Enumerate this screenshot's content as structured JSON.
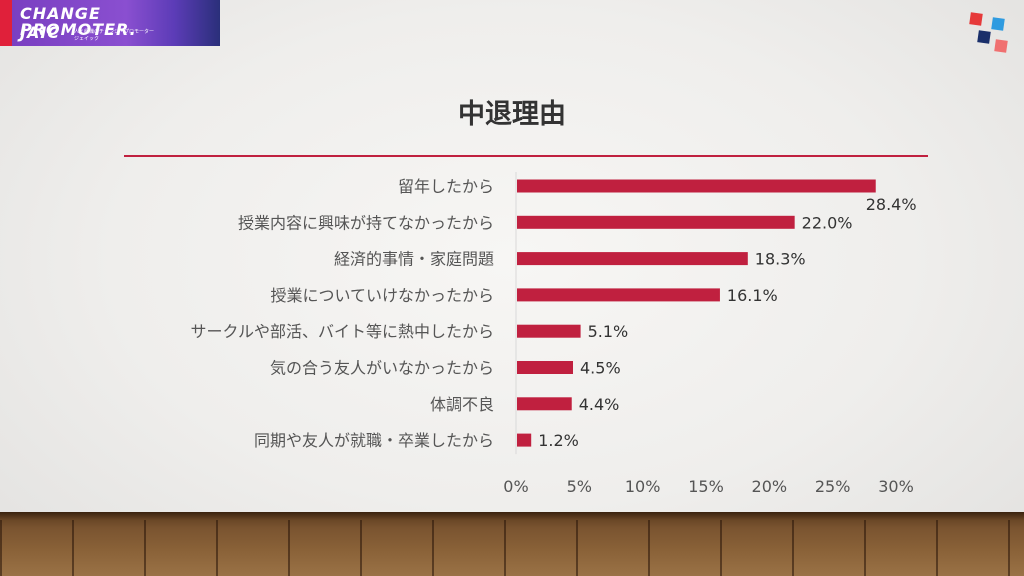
{
  "logo": {
    "line1": "CHANGE PROMOTER.",
    "line2": "JAIC",
    "tagline1": "人と組織のチェンジ・プロモーター",
    "tagline2": "ジェイック"
  },
  "colors": {
    "accent": "#c0203f",
    "bar": "#c0203f",
    "square_red": "#e63a3a",
    "square_blue": "#2f9be0",
    "square_navy": "#1a2f6a",
    "square_pink": "#f07070"
  },
  "chart_data": {
    "type": "bar",
    "orientation": "horizontal",
    "title": "中退理由",
    "categories": [
      "留年したから",
      "授業内容に興味が持てなかったから",
      "経済的事情・家庭問題",
      "授業についていけなかったから",
      "サークルや部活、バイト等に熱中したから",
      "気の合う友人がいなかったから",
      "体調不良",
      "同期や友人が就職・卒業したから"
    ],
    "values": [
      28.4,
      22.0,
      18.3,
      16.1,
      5.1,
      4.5,
      4.4,
      1.2
    ],
    "value_labels": [
      "28.4%",
      "22.0%",
      "18.3%",
      "16.1%",
      "5.1%",
      "4.5%",
      "4.4%",
      "1.2%"
    ],
    "xlim": [
      0,
      30
    ],
    "xticks": [
      "0%",
      "5%",
      "10%",
      "15%",
      "20%",
      "25%",
      "30%"
    ],
    "grid": false
  }
}
